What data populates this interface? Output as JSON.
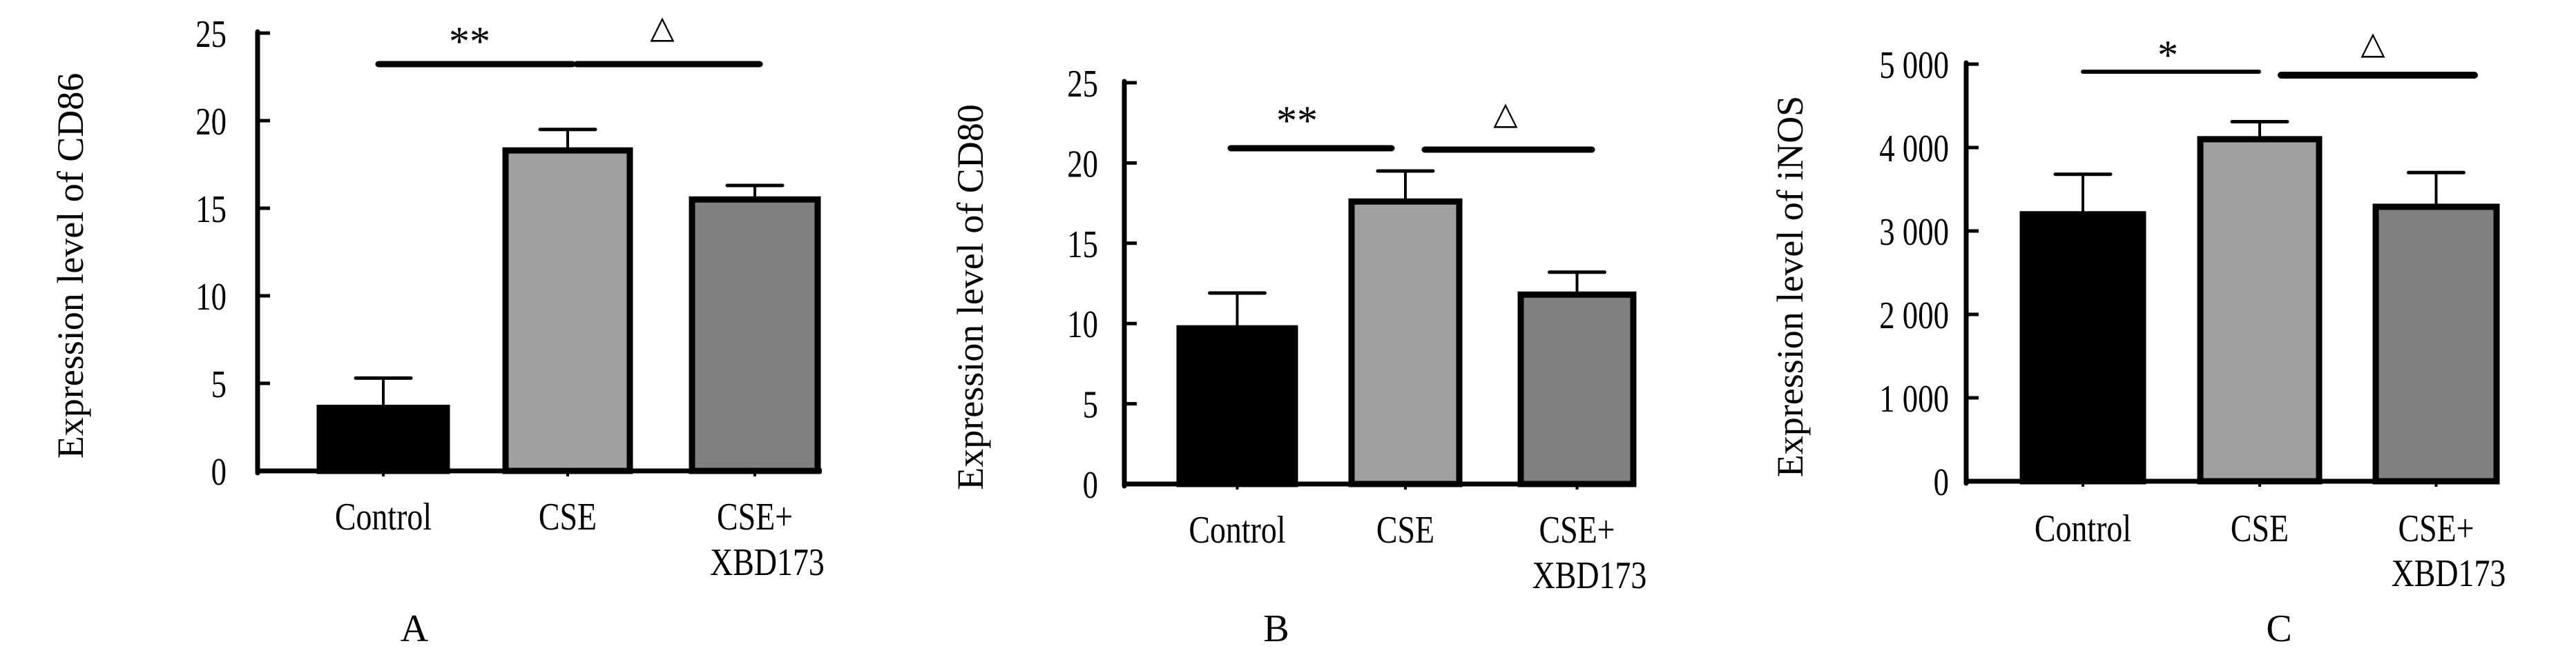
{
  "colors": {
    "control": "#000000",
    "cse": "#a0a0a0",
    "cse_xbd": "#808080",
    "axis": "#000000"
  },
  "chart_data": [
    {
      "type": "bar",
      "panel_label": "A",
      "title": "",
      "xlabel": "",
      "ylabel": "Expression level of CD86",
      "ylim": [
        0,
        25
      ],
      "yticks": [
        0,
        5,
        10,
        15,
        20,
        25
      ],
      "ytick_labels": [
        "0",
        "5",
        "10",
        "15",
        "20",
        "25"
      ],
      "categories": [
        "Control",
        "CSE",
        "CSE+\nXBD173"
      ],
      "category_lines": [
        [
          "Control"
        ],
        [
          "CSE"
        ],
        [
          "CSE+",
          "XBD173"
        ]
      ],
      "values": [
        3.6,
        18.3,
        15.5
      ],
      "error_upper": [
        5.3,
        19.5,
        16.3
      ],
      "grid": false,
      "significance": [
        {
          "from": 0,
          "to": 1,
          "label": "**"
        },
        {
          "from": 1,
          "to": 2,
          "label": "△"
        }
      ]
    },
    {
      "type": "bar",
      "panel_label": "B",
      "title": "",
      "xlabel": "",
      "ylabel": "Expression level of CD80",
      "ylim": [
        0,
        25
      ],
      "yticks": [
        0,
        5,
        10,
        15,
        20,
        25
      ],
      "ytick_labels": [
        "0",
        "5",
        "10",
        "15",
        "20",
        "25"
      ],
      "categories": [
        "Control",
        "CSE",
        "CSE+\nXBD173"
      ],
      "category_lines": [
        [
          "Control"
        ],
        [
          "CSE"
        ],
        [
          "CSE+",
          "XBD173"
        ]
      ],
      "values": [
        9.7,
        17.6,
        11.8
      ],
      "error_upper": [
        11.9,
        19.5,
        13.2
      ],
      "grid": false,
      "significance": [
        {
          "from": 0,
          "to": 1,
          "label": "**"
        },
        {
          "from": 1,
          "to": 2,
          "label": "△"
        }
      ]
    },
    {
      "type": "bar",
      "panel_label": "C",
      "title": "",
      "xlabel": "",
      "ylabel": "Expression level of iNOS",
      "ylim": [
        0,
        5000
      ],
      "yticks": [
        0,
        1000,
        2000,
        3000,
        4000,
        5000
      ],
      "ytick_labels": [
        "0",
        "1 000",
        "2 000",
        "3 000",
        "4 000",
        "5 000"
      ],
      "categories": [
        "Control",
        "CSE",
        "CSE+\nXBD173"
      ],
      "category_lines": [
        [
          "Control"
        ],
        [
          "CSE"
        ],
        [
          "CSE+",
          "XBD173"
        ]
      ],
      "values": [
        3200,
        4100,
        3290
      ],
      "error_upper": [
        3680,
        4310,
        3700
      ],
      "grid": false,
      "significance": [
        {
          "from": 0,
          "to": 1,
          "label": "*"
        },
        {
          "from": 1,
          "to": 2,
          "label": "△"
        }
      ]
    }
  ]
}
